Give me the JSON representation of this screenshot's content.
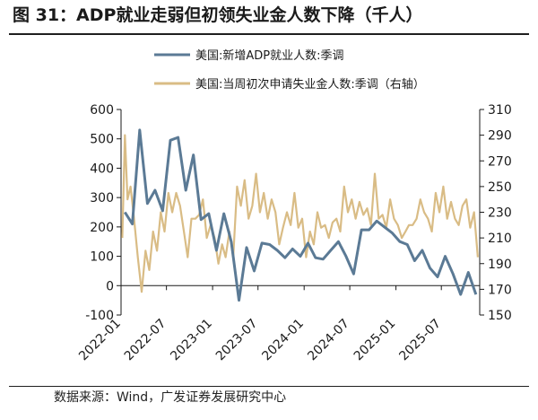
{
  "header": {
    "title": "图 31：ADP就业走弱但初领失业金人数下降（千人）"
  },
  "footer": {
    "source": "数据来源：Wind，广发证券发展研究中心"
  },
  "chart_data": {
    "type": "line",
    "title": "图 31：ADP就业走弱但初领失业金人数下降（千人）",
    "legend_position": "top",
    "grid": false,
    "x_ticks": [
      "2022-01",
      "2022-07",
      "2023-01",
      "2023-07",
      "2024-01",
      "2024-07",
      "2025-01",
      "2025-07"
    ],
    "y_left": {
      "ylim": [
        -100,
        600
      ],
      "ticks": [
        "-100",
        "0",
        "100",
        "200",
        "300",
        "400",
        "500",
        "600"
      ]
    },
    "y_right": {
      "ylim": [
        150,
        310
      ],
      "ticks": [
        "150",
        "170",
        "190",
        "210",
        "230",
        "250",
        "270",
        "290",
        "310"
      ]
    },
    "series": [
      {
        "name": "美国:新增ADP就业人数:季调",
        "axis": "left",
        "color": "#5b7a95",
        "x": [
          "2022-01",
          "2022-02",
          "2022-03",
          "2022-04",
          "2022-05",
          "2022-06",
          "2022-07",
          "2022-08",
          "2022-09",
          "2022-10",
          "2022-11",
          "2022-12",
          "2023-01",
          "2023-02",
          "2023-03",
          "2023-04",
          "2023-05",
          "2023-06",
          "2023-07",
          "2023-08",
          "2023-09",
          "2023-10",
          "2023-11",
          "2023-12",
          "2024-01",
          "2024-02",
          "2024-03",
          "2024-04",
          "2024-05",
          "2024-06",
          "2024-07",
          "2024-08",
          "2024-09",
          "2024-10",
          "2024-11",
          "2024-12",
          "2025-01",
          "2025-02",
          "2025-03",
          "2025-04",
          "2025-05",
          "2025-06",
          "2025-07",
          "2025-08",
          "2025-09",
          "2025-10",
          "2025-11"
        ],
        "values": [
          250,
          210,
          530,
          280,
          325,
          255,
          495,
          505,
          325,
          445,
          225,
          245,
          120,
          245,
          150,
          -50,
          130,
          50,
          145,
          140,
          120,
          95,
          125,
          100,
          145,
          95,
          90,
          120,
          150,
          100,
          40,
          190,
          190,
          220,
          200,
          180,
          150,
          140,
          85,
          120,
          60,
          30,
          100,
          40,
          -30,
          45,
          -30
        ]
      },
      {
        "name": "美国:当周初次申请失业金人数:季调（右轴）",
        "axis": "right",
        "color": "#d9bc85",
        "x": [
          "2022-01",
          "2022-01",
          "2022-01",
          "2022-02",
          "2022-02",
          "2022-03",
          "2022-03",
          "2022-04",
          "2022-04",
          "2022-05",
          "2022-05",
          "2022-06",
          "2022-06",
          "2022-07",
          "2022-07",
          "2022-08",
          "2022-08",
          "2022-09",
          "2022-09",
          "2022-10",
          "2022-10",
          "2022-11",
          "2022-11",
          "2022-12",
          "2022-12",
          "2023-01",
          "2023-01",
          "2023-02",
          "2023-02",
          "2023-03",
          "2023-03",
          "2023-04",
          "2023-04",
          "2023-05",
          "2023-05",
          "2023-06",
          "2023-06",
          "2023-07",
          "2023-07",
          "2023-08",
          "2023-08",
          "2023-09",
          "2023-09",
          "2023-10",
          "2023-10",
          "2023-11",
          "2023-11",
          "2023-12",
          "2023-12",
          "2024-01",
          "2024-01",
          "2024-02",
          "2024-02",
          "2024-03",
          "2024-03",
          "2024-04",
          "2024-04",
          "2024-05",
          "2024-05",
          "2024-06",
          "2024-06",
          "2024-07",
          "2024-07",
          "2024-08",
          "2024-08",
          "2024-09",
          "2024-09",
          "2024-10",
          "2024-10",
          "2024-11",
          "2024-11",
          "2024-12",
          "2024-12",
          "2025-01",
          "2025-01",
          "2025-02",
          "2025-02",
          "2025-03",
          "2025-03",
          "2025-04",
          "2025-04",
          "2025-05",
          "2025-05",
          "2025-06",
          "2025-06",
          "2025-07",
          "2025-07",
          "2025-08",
          "2025-08",
          "2025-09",
          "2025-09",
          "2025-10",
          "2025-10",
          "2025-11",
          "2025-11"
        ],
        "values": [
          210,
          290,
          240,
          250,
          225,
          195,
          168,
          200,
          185,
          215,
          200,
          230,
          215,
          245,
          230,
          245,
          235,
          215,
          195,
          225,
          225,
          228,
          240,
          210,
          220,
          210,
          190,
          205,
          195,
          215,
          195,
          250,
          235,
          255,
          225,
          235,
          260,
          230,
          245,
          225,
          240,
          230,
          205,
          218,
          230,
          220,
          245,
          218,
          225,
          195,
          215,
          205,
          230,
          218,
          220,
          210,
          222,
          225,
          215,
          250,
          230,
          240,
          225,
          238,
          228,
          233,
          220,
          260,
          225,
          228,
          218,
          240,
          225,
          220,
          210,
          215,
          220,
          220,
          225,
          240,
          230,
          225,
          215,
          245,
          230,
          250,
          225,
          238,
          225,
          220,
          235,
          240,
          218,
          230,
          195
        ]
      }
    ]
  }
}
